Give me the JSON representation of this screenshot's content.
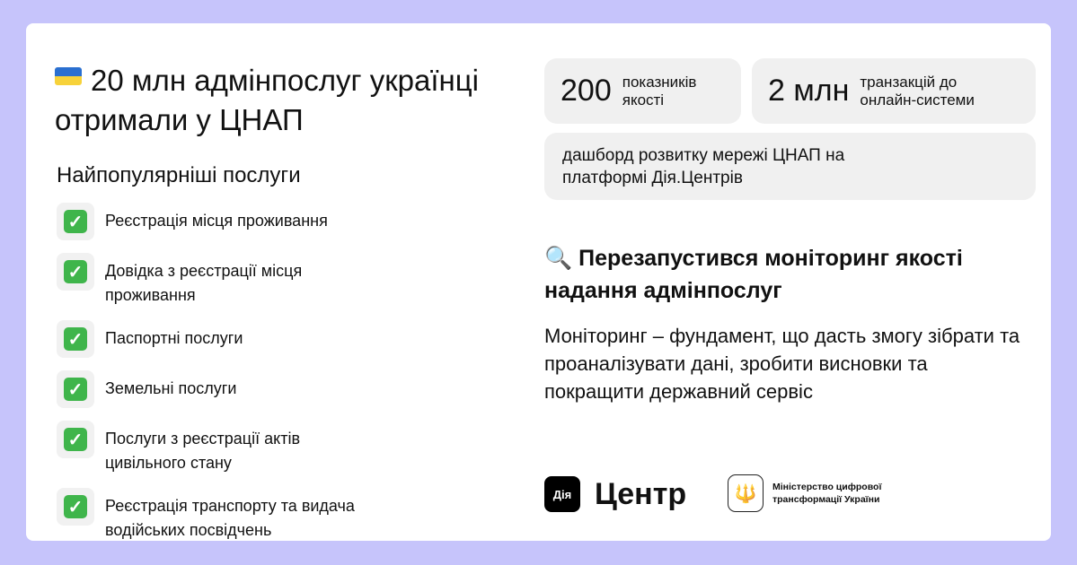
{
  "title": {
    "flag_icon": "ukraine-flag-icon",
    "text": "20 млн адмінпослуг українці отримали у ЦНАП"
  },
  "services": {
    "heading": "Найпопулярніші послуги",
    "items": [
      "Реєстрація місця проживання",
      "Довідка з реєстрації місця проживання",
      "Паспортні послуги",
      "Земельні послуги",
      "Послуги з реєстрації актів цивільного стану",
      "Реєстрація транспорту та видача водійських посвідчень"
    ]
  },
  "stats": [
    {
      "value": "200",
      "label": "показників якості"
    },
    {
      "value": "2 млн",
      "label": "транзакцій до онлайн-системи"
    }
  ],
  "dashboard": "дашборд розвитку мережі ЦНАП на платформі Дія.Центрів",
  "monitoring": {
    "icon": "magnifier-icon",
    "heading": "Перезапустився моніторинг якості надання адмінпослуг",
    "text": "Моніторинг – фундамент, що дасть змогу зібрати та проаналізувати дані, зробити висновки та покращити державний сервіс"
  },
  "logos": {
    "dia": "Дія",
    "centr": "Центр",
    "ministry": "Міністерство цифрової трансформації України"
  },
  "colors": {
    "background": "#c6c4fb",
    "check": "#3fb54b"
  }
}
